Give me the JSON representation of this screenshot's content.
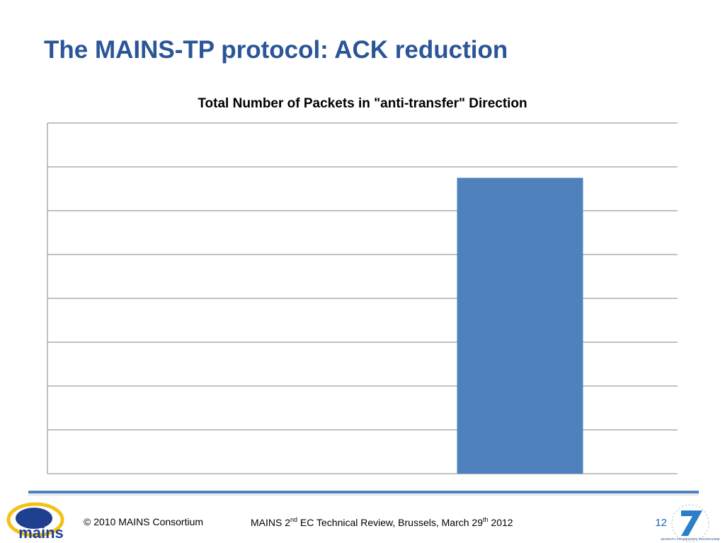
{
  "slide": {
    "title": "The MAINS-TP protocol: ACK reduction",
    "footer": {
      "logo_text": "mains",
      "copyright": "© 2010 MAINS Consortium",
      "event": [
        "MAINS 2",
        "nd",
        " EC Technical Review, Brussels, March 29",
        "th",
        " 2012"
      ],
      "page": "12",
      "fp7": "SEVENTH FRAMEWORK PROGRAMME"
    }
  },
  "chart_data": {
    "type": "bar",
    "title": "Total Number of Packets in \"anti-transfer\" Direction",
    "categories": [
      null,
      null
    ],
    "values": [
      0,
      6.75
    ],
    "color": "#4f81bd",
    "ylim": [
      0,
      8
    ],
    "yticks": [
      0,
      1,
      2,
      3,
      4,
      5,
      6,
      7,
      8
    ],
    "grid": true
  }
}
